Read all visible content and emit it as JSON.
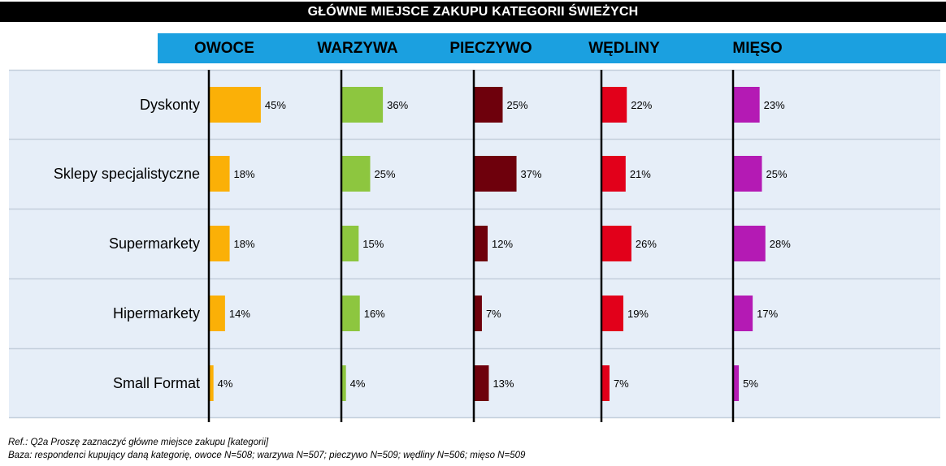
{
  "title": "GŁÓWNE MIEJSCE ZAKUPU KATEGORII ŚWIEŻYCH",
  "footnotes": {
    "ref": "Ref.: Q2a Proszę zaznaczyć główne miejsce zakupu [kategorii]",
    "base": "Baza: respondenci kupujący daną kategorię, owoce N=508; warzywa N=507; pieczywo N=509; wędliny N=506; mięso N=509"
  },
  "colors": {
    "title_bg": "#000000",
    "header_band": "#1ba0e0",
    "panel_bg": "#e6eef8",
    "row_divider": "#c3cfdc",
    "axis_line": "#000000"
  },
  "chart_data": {
    "type": "bar",
    "orientation": "horizontal",
    "categories": [
      "Dyskonty",
      "Sklepy specjalistyczne",
      "Supermarkety",
      "Hipermarkety",
      "Small Format"
    ],
    "series": [
      {
        "name": "OWOCE",
        "color": "#fbb007",
        "values": [
          45,
          18,
          18,
          14,
          4
        ]
      },
      {
        "name": "WARZYWA",
        "color": "#8dc63f",
        "values": [
          36,
          25,
          15,
          16,
          4
        ]
      },
      {
        "name": "PIECZYWO",
        "color": "#6e000c",
        "values": [
          25,
          37,
          12,
          7,
          13
        ]
      },
      {
        "name": "WĘDLINY",
        "color": "#e2001a",
        "values": [
          22,
          21,
          26,
          19,
          7
        ]
      },
      {
        "name": "MIĘSO",
        "color": "#b41ab4",
        "values": [
          23,
          25,
          28,
          17,
          5
        ]
      }
    ],
    "value_suffix": "%",
    "xlim": [
      0,
      100
    ],
    "grid": false,
    "legend": "none"
  }
}
